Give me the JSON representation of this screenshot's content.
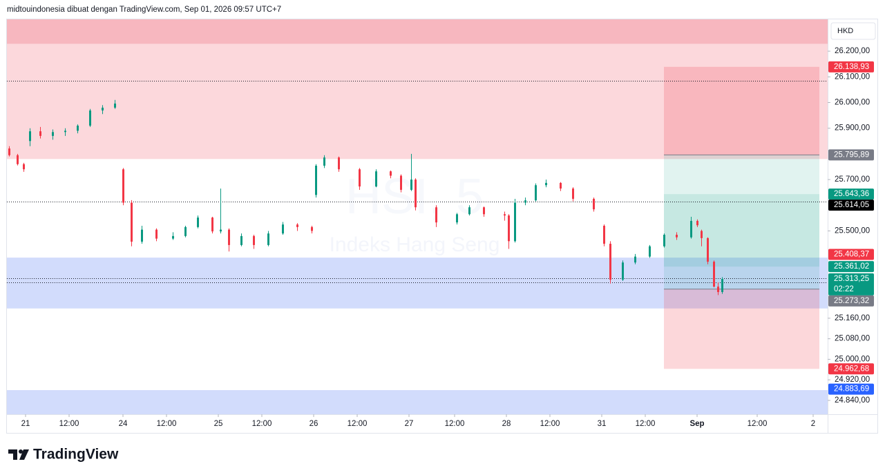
{
  "header": {
    "text": "midtouindonesia dibuat dengan TradingView.com, Sep 01, 2026 09:57 UTC+7"
  },
  "chart_data": {
    "type": "candlestick",
    "symbol": "HSI, 5",
    "description": "Indeks Hang Seng",
    "currency": "HKD",
    "up_color": "#089981",
    "down_color": "#f23645",
    "xlim": [
      0,
      396
    ],
    "xticks": [
      {
        "value": 9,
        "label": "21"
      },
      {
        "value": 30,
        "label": "12:00"
      },
      {
        "value": 56,
        "label": "24"
      },
      {
        "value": 77,
        "label": "12:00"
      },
      {
        "value": 102,
        "label": "25"
      },
      {
        "value": 123,
        "label": "12:00"
      },
      {
        "value": 148,
        "label": "26"
      },
      {
        "value": 169,
        "label": "12:00"
      },
      {
        "value": 194,
        "label": "27"
      },
      {
        "value": 216,
        "label": "12:00"
      },
      {
        "value": 241,
        "label": "28"
      },
      {
        "value": 262,
        "label": "12:00"
      },
      {
        "value": 287,
        "label": "31"
      },
      {
        "value": 308,
        "label": "12:00"
      },
      {
        "value": 333,
        "label": "Sep"
      },
      {
        "value": 362,
        "label": "12:00"
      },
      {
        "value": 389,
        "label": "2"
      }
    ],
    "ylim": [
      24786,
      26324
    ],
    "yticks": [
      {
        "value": 26200,
        "label": "26.200,00"
      },
      {
        "value": 26100,
        "label": "26.100,00"
      },
      {
        "value": 26000,
        "label": "26.000,00"
      },
      {
        "value": 25900,
        "label": "25.900,00"
      },
      {
        "value": 25700,
        "label": "25.700,00"
      },
      {
        "value": 25500,
        "label": "25.500,00"
      },
      {
        "value": 25160,
        "label": "25.160,00"
      },
      {
        "value": 25080,
        "label": "25.080,00"
      },
      {
        "value": 25000,
        "label": "25.000,00"
      },
      {
        "value": 24920,
        "label": "24.920,00"
      },
      {
        "value": 24840,
        "label": "24.840,00"
      }
    ],
    "x": [
      1,
      5,
      8,
      11,
      16,
      22,
      28,
      34,
      40,
      46,
      52,
      56,
      60,
      65,
      72,
      80,
      86,
      92,
      99,
      103,
      107,
      113,
      119,
      126,
      133,
      140,
      147,
      149,
      153,
      160,
      170,
      178,
      185,
      190,
      195,
      197,
      207,
      217,
      223,
      230,
      240,
      242,
      245,
      250,
      255,
      260,
      267,
      273,
      283,
      288,
      291,
      297,
      303,
      310,
      317,
      323,
      330,
      333,
      335,
      338,
      341,
      343,
      345
    ],
    "open": [
      25821,
      25795,
      25760,
      25850,
      25888,
      25870,
      25885,
      25890,
      25910,
      25969,
      25980,
      25740,
      25610,
      25458,
      25505,
      25470,
      25480,
      25515,
      25552,
      25498,
      25505,
      25445,
      25480,
      25445,
      25490,
      25525,
      25515,
      25640,
      25754,
      25786,
      25740,
      25673,
      25732,
      25715,
      25660,
      25700,
      25592,
      25533,
      25565,
      25592,
      25565,
      25560,
      25460,
      25610,
      25619,
      25678,
      25687,
      25665,
      25625,
      25520,
      25450,
      25310,
      25377,
      25400,
      25440,
      25485,
      25475,
      25539,
      25500,
      25472,
      25380,
      25283,
      25262
    ],
    "high": [
      25830,
      25800,
      25765,
      25900,
      25905,
      25895,
      25900,
      25915,
      25975,
      25990,
      26010,
      25745,
      25620,
      25520,
      25510,
      25495,
      25520,
      25560,
      25555,
      25665,
      25510,
      25490,
      25485,
      25500,
      25535,
      25530,
      25520,
      25760,
      25795,
      25790,
      25745,
      25740,
      25735,
      25720,
      25800,
      25705,
      25600,
      25570,
      25600,
      25595,
      25575,
      25565,
      25625,
      25630,
      25685,
      25700,
      25690,
      25670,
      25630,
      25525,
      25460,
      25385,
      25410,
      25445,
      25490,
      25495,
      25555,
      25545,
      25505,
      25475,
      25385,
      25300,
      25320
    ],
    "low": [
      25790,
      25755,
      25730,
      25830,
      25860,
      25855,
      25870,
      25880,
      25905,
      25955,
      25975,
      25600,
      25440,
      25450,
      25460,
      25465,
      25475,
      25510,
      25490,
      25490,
      25420,
      25440,
      25430,
      25440,
      25485,
      25500,
      25490,
      25630,
      25745,
      25730,
      25660,
      25670,
      25705,
      25650,
      25655,
      25580,
      25515,
      25525,
      25560,
      25555,
      25540,
      25430,
      25455,
      25600,
      25615,
      25670,
      25655,
      25615,
      25575,
      25440,
      25295,
      25305,
      25370,
      25395,
      25435,
      25465,
      25470,
      25515,
      25440,
      25370,
      25280,
      25250,
      25255
    ],
    "close": [
      25795,
      25760,
      25740,
      25888,
      25870,
      25885,
      25890,
      25910,
      25969,
      25980,
      25996,
      25610,
      25458,
      25505,
      25470,
      25480,
      25515,
      25552,
      25498,
      25505,
      25445,
      25480,
      25445,
      25490,
      25525,
      25515,
      25500,
      25754,
      25786,
      25740,
      25673,
      25732,
      25715,
      25660,
      25700,
      25592,
      25533,
      25565,
      25592,
      25565,
      25560,
      25460,
      25610,
      25619,
      25678,
      25687,
      25665,
      25625,
      25584,
      25450,
      25310,
      25377,
      25400,
      25440,
      25485,
      25475,
      25539,
      25522,
      25472,
      25380,
      25283,
      25262,
      25313
    ],
    "zones": [
      {
        "from": 26228,
        "to": 26324,
        "color": "#f7b7bf"
      },
      {
        "from": 25780,
        "to": 26228,
        "color": "#fcd8dc"
      },
      {
        "from": 25198,
        "to": 25396,
        "color": "#d2dcfc"
      },
      {
        "from": 24786,
        "to": 24880,
        "color": "#d2dcfc"
      }
    ],
    "dotted_lines": [
      26084,
      25614.05,
      25316,
      25300
    ],
    "positions": [
      {
        "x": [
          317,
          392
        ],
        "entry": 25795.89,
        "stop": 26138.93,
        "target": 25361.02
      },
      {
        "x": [
          317,
          392
        ],
        "entry": 25273.32,
        "stop": 24962.68,
        "target": 25643.36
      }
    ],
    "price_tags": [
      {
        "value": 26138.93,
        "label": "26.138,93",
        "color": "#f23645"
      },
      {
        "value": 25795.89,
        "label": "25.795,89",
        "color": "#787b86"
      },
      {
        "value": 25643.36,
        "label": "25.643,36",
        "color": "#089981"
      },
      {
        "value": 25614.05,
        "label": "25.614,05",
        "color": "#000000"
      },
      {
        "value": 25408.37,
        "label": "25.408,37",
        "color": "#f23645"
      },
      {
        "value": 25361.02,
        "label": "25.361,02",
        "color": "#089981"
      },
      {
        "value": 25313.25,
        "label": "25.313,25",
        "color": "#089981",
        "countdown": "02:22"
      },
      {
        "value": 25273.32,
        "label": "25.273,32",
        "color": "#787b86"
      },
      {
        "value": 24962.68,
        "label": "24.962,68",
        "color": "#f23645"
      },
      {
        "value": 24883.69,
        "label": "24.883,69",
        "color": "#2962ff"
      }
    ]
  },
  "footer": {
    "brand": "TradingView"
  }
}
